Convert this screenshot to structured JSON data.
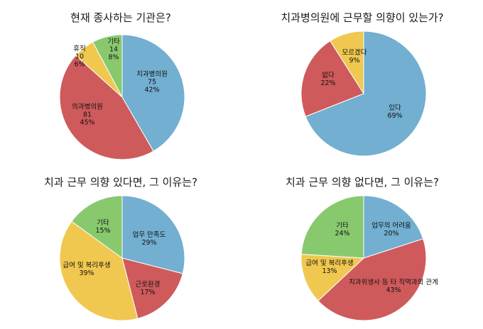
{
  "colors": {
    "blue": "#72afd1",
    "red": "#cf5a5b",
    "yellow": "#f0c850",
    "green": "#88c96e"
  },
  "chart_data": [
    {
      "type": "pie",
      "title": "현재 종사하는 기관은?",
      "slices": [
        {
          "name": "치과병의원",
          "value": 75,
          "percent": "42%",
          "color": "blue"
        },
        {
          "name": "의과병의원",
          "value": 81,
          "percent": "45%",
          "color": "red"
        },
        {
          "name": "휴직",
          "value": 10,
          "percent": "6%",
          "color": "yellow"
        },
        {
          "name": "기타",
          "value": 14,
          "percent": "8%",
          "color": "green"
        }
      ]
    },
    {
      "type": "pie",
      "title": "치과병의원에 근무할 의향이 있는가?",
      "slices": [
        {
          "name": "있다",
          "value": 69,
          "percent": "69%",
          "color": "blue"
        },
        {
          "name": "없다",
          "value": 22,
          "percent": "22%",
          "color": "red"
        },
        {
          "name": "모르겠다",
          "value": 9,
          "percent": "9%",
          "color": "yellow"
        }
      ]
    },
    {
      "type": "pie",
      "title": "치과 근무 의향 있다면, 그 이유는?",
      "slices": [
        {
          "name": "업무 만족도",
          "value": 29,
          "percent": "29%",
          "color": "blue"
        },
        {
          "name": "근로환경",
          "value": 17,
          "percent": "17%",
          "color": "red"
        },
        {
          "name": "급여 및 복리후생",
          "value": 39,
          "percent": "39%",
          "color": "yellow"
        },
        {
          "name": "기타",
          "value": 15,
          "percent": "15%",
          "color": "green"
        }
      ]
    },
    {
      "type": "pie",
      "title": "치과 근무 의향 없다면, 그 이유는?",
      "slices": [
        {
          "name": "업무의 어려움",
          "value": 20,
          "percent": "20%",
          "color": "blue"
        },
        {
          "name": "치과위생사 등 타 직역과의 관계",
          "value": 43,
          "percent": "43%",
          "color": "red"
        },
        {
          "name": "급여 및 복리후생",
          "value": 13,
          "percent": "13%",
          "color": "yellow"
        },
        {
          "name": "기타",
          "value": 24,
          "percent": "24%",
          "color": "green"
        }
      ]
    }
  ]
}
